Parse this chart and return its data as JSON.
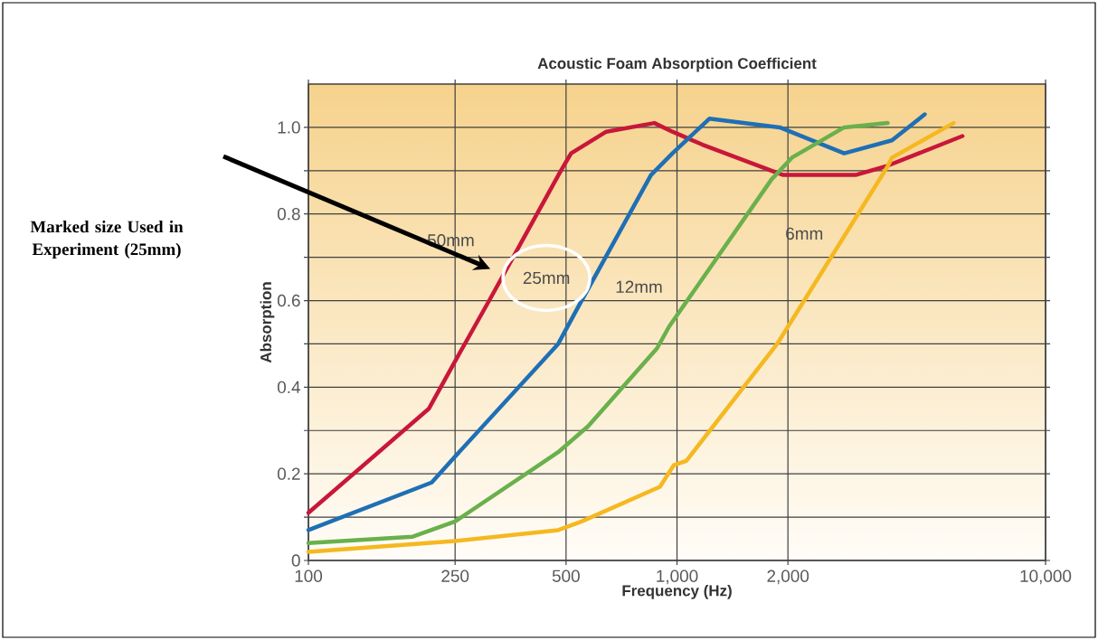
{
  "chart_data": {
    "type": "line",
    "title": "Acoustic Foam Absorption Coefficient",
    "xlabel": "Frequency (Hz)",
    "ylabel": "Absorption",
    "log": "x",
    "xlim": [
      100,
      10000
    ],
    "ylim": [
      0,
      1.1
    ],
    "xticks": [
      100,
      250,
      500,
      {
        "value": 1000,
        "label": "1,000"
      },
      {
        "value": 2000,
        "label": "2,000"
      },
      {
        "value": 10000,
        "label": "10,000"
      }
    ],
    "yticks": [
      0,
      {
        "value": 0.1,
        "label": null
      },
      0.2,
      {
        "value": 0.3,
        "label": null
      },
      0.4,
      {
        "value": 0.5,
        "label": null
      },
      0.6,
      {
        "value": 0.7,
        "label": null
      },
      0.8,
      {
        "value": 0.9,
        "label": null
      },
      {
        "value": 1.0,
        "label": "1.0"
      }
    ],
    "grid": true,
    "marker": "none",
    "line_style": "solid",
    "annotations": [
      "Marked size Used in Experiment (25mm)"
    ],
    "series": [
      {
        "name": "50mm",
        "color": "#c8173a",
        "x": [
          100,
          212,
          250,
          314,
          484,
          516,
          643,
          868,
          972,
          1173,
          1806,
          1943,
          3050,
          3690,
          5950
        ],
        "values": [
          0.11,
          0.35,
          0.46,
          0.61,
          0.9,
          0.94,
          0.99,
          1.01,
          0.99,
          0.96,
          0.9,
          0.89,
          0.89,
          0.91,
          0.98
        ]
      },
      {
        "name": "25mm",
        "color": "#1f6fb5",
        "x": [
          100,
          216,
          250,
          476,
          543,
          850,
          972,
          1224,
          1900,
          2842,
          3830,
          4700
        ],
        "values": [
          0.07,
          0.18,
          0.24,
          0.5,
          0.59,
          0.89,
          0.94,
          1.02,
          1.0,
          0.94,
          0.97,
          1.03
        ]
      },
      {
        "name": "12mm",
        "color": "#6ab04c",
        "x": [
          100,
          192,
          250,
          476,
          574,
          883,
          952,
          1806,
          2050,
          2842,
          3730
        ],
        "values": [
          0.04,
          0.055,
          0.09,
          0.25,
          0.31,
          0.49,
          0.54,
          0.88,
          0.93,
          1.0,
          1.01
        ]
      },
      {
        "name": "6mm",
        "color": "#f5b820",
        "x": [
          100,
          250,
          476,
          551,
          899,
          980,
          1060,
          1870,
          3730,
          3830,
          5630
        ],
        "values": [
          0.02,
          0.045,
          0.07,
          0.09,
          0.17,
          0.22,
          0.23,
          0.5,
          0.91,
          0.93,
          1.01
        ]
      }
    ]
  }
}
